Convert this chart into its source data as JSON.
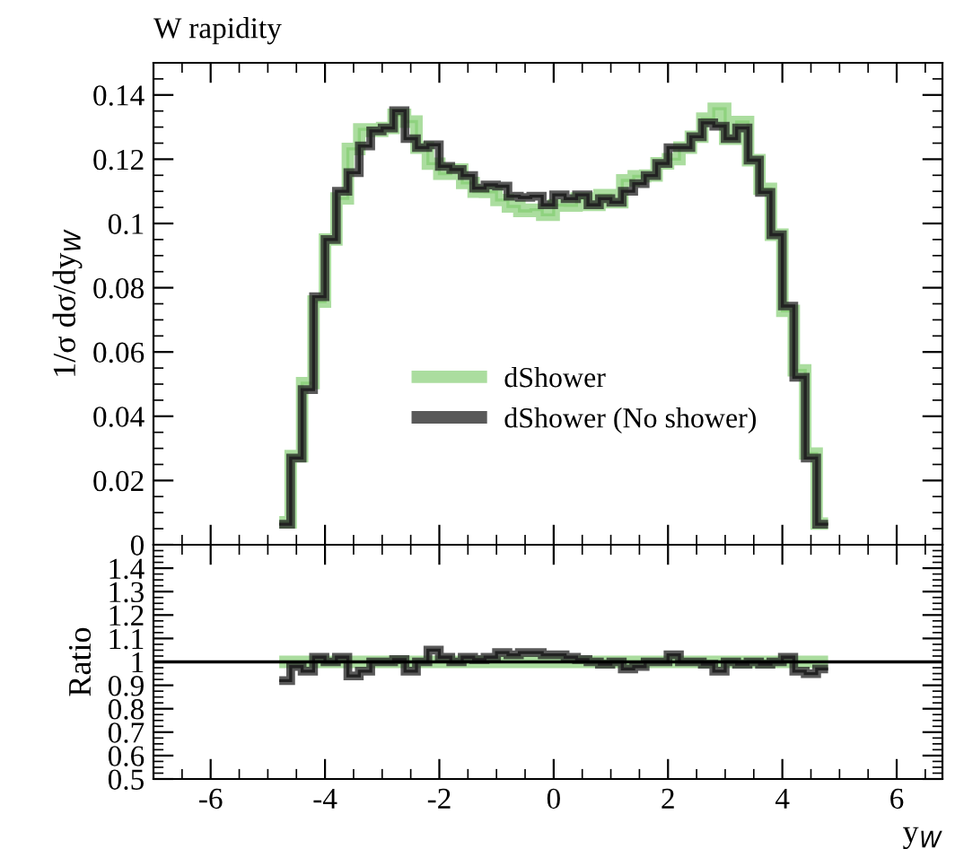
{
  "chart_data": [
    {
      "type": "histogram",
      "title": "W rapidity",
      "ylabel": "1/σ dσ/dy$_{W}$",
      "bins": [
        -4.8,
        -4.6,
        -4.4,
        -4.2,
        -4.0,
        -3.8,
        -3.6,
        -3.4,
        -3.2,
        -3.0,
        -2.8,
        -2.6,
        -2.4,
        -2.2,
        -2.0,
        -1.8,
        -1.6,
        -1.4,
        -1.2,
        -1.0,
        -0.8,
        -0.6,
        -0.4,
        -0.2,
        0.0,
        0.2,
        0.4,
        0.6,
        0.8,
        1.0,
        1.2,
        1.4,
        1.6,
        1.8,
        2.0,
        2.2,
        2.4,
        2.6,
        2.8,
        3.0,
        3.2,
        3.4,
        3.6,
        3.8,
        4.0,
        4.2,
        4.4,
        4.6,
        4.8
      ],
      "series": [
        {
          "name": "dShower",
          "color": "#8fd27f",
          "values": [
            0.007,
            0.0276,
            0.0503,
            0.0757,
            0.095,
            0.1078,
            0.1232,
            0.1293,
            0.1288,
            0.1297,
            0.1338,
            0.1317,
            0.1236,
            0.1186,
            0.1155,
            0.1168,
            0.1126,
            0.1099,
            0.1098,
            0.1073,
            0.1053,
            0.1039,
            0.1043,
            0.1027,
            0.1057,
            0.1056,
            0.1078,
            0.1058,
            0.1088,
            0.1066,
            0.1134,
            0.1147,
            0.1149,
            0.1187,
            0.12,
            0.1236,
            0.127,
            0.1326,
            0.1357,
            0.1264,
            0.1316,
            0.1197,
            0.1108,
            0.0965,
            0.0728,
            0.0543,
            0.0284,
            0.0066
          ]
        },
        {
          "name": "dShower (No shower)",
          "color": "#222222",
          "values": [
            0.0064,
            0.027,
            0.0483,
            0.0772,
            0.095,
            0.11,
            0.1158,
            0.1241,
            0.1288,
            0.1297,
            0.1351,
            0.1264,
            0.1236,
            0.1245,
            0.1178,
            0.1168,
            0.1149,
            0.111,
            0.112,
            0.1116,
            0.1085,
            0.1081,
            0.1085,
            0.1058,
            0.1089,
            0.1077,
            0.1089,
            0.1058,
            0.1077,
            0.1066,
            0.11,
            0.1124,
            0.1149,
            0.1187,
            0.1236,
            0.1236,
            0.127,
            0.1313,
            0.1303,
            0.1264,
            0.1297,
            0.1197,
            0.1097,
            0.0965,
            0.0743,
            0.0521,
            0.027,
            0.0064
          ]
        }
      ],
      "xlim": [
        -7,
        6.8
      ],
      "ylim": [
        0,
        0.15
      ],
      "yticks": [
        0,
        0.02,
        0.04,
        0.06,
        0.08,
        {
          "value": 0.1,
          "label": "0.1"
        },
        0.12,
        0.14
      ],
      "tick_labels": "y",
      "legend": "center",
      "grid": false
    },
    {
      "type": "histogram",
      "xlabel": "y$_{W}$",
      "ylabel": "Ratio",
      "bins": [
        -4.8,
        -4.6,
        -4.4,
        -4.2,
        -4.0,
        -3.8,
        -3.6,
        -3.4,
        -3.2,
        -3.0,
        -2.8,
        -2.6,
        -2.4,
        -2.2,
        -2.0,
        -1.8,
        -1.6,
        -1.4,
        -1.2,
        -1.0,
        -0.8,
        -0.6,
        -0.4,
        -0.2,
        0.0,
        0.2,
        0.4,
        0.6,
        0.8,
        1.0,
        1.2,
        1.4,
        1.6,
        1.8,
        2.0,
        2.2,
        2.4,
        2.6,
        2.8,
        3.0,
        3.2,
        3.4,
        3.6,
        3.8,
        4.0,
        4.2,
        4.4,
        4.6,
        4.8
      ],
      "series": [
        {
          "color": "#8fd27f",
          "values": [
            1,
            1,
            1,
            1,
            1,
            1,
            1,
            1,
            1,
            1,
            1,
            1,
            1,
            1,
            1,
            1,
            1,
            1,
            1,
            1,
            1,
            1,
            1,
            1,
            1,
            1,
            1,
            1,
            1,
            1,
            1,
            1,
            1,
            1,
            1,
            1,
            1,
            1,
            1,
            1,
            1,
            1,
            1,
            1,
            1,
            1,
            1,
            1
          ]
        },
        {
          "color": "#222222",
          "values": [
            0.92,
            0.98,
            0.96,
            1.02,
            1.0,
            1.02,
            0.94,
            0.96,
            1.0,
            1.0,
            1.01,
            0.96,
            1.0,
            1.05,
            1.02,
            1.0,
            1.02,
            1.01,
            1.02,
            1.04,
            1.03,
            1.04,
            1.04,
            1.03,
            1.03,
            1.02,
            1.01,
            1.0,
            0.99,
            1.0,
            0.97,
            0.98,
            1.0,
            1.0,
            1.03,
            1.0,
            1.0,
            0.99,
            0.96,
            1.0,
            0.99,
            1.0,
            0.99,
            1.0,
            1.02,
            0.96,
            0.95,
            0.97
          ]
        }
      ],
      "ref_lines": [
        {
          "axis": "y",
          "value": 1,
          "color": "#000000"
        }
      ],
      "xlim": [
        -7,
        6.8
      ],
      "ylim": [
        0.5,
        1.5
      ],
      "xticks": [
        -6,
        -4,
        -2,
        0,
        2,
        4,
        6
      ],
      "yticks": [
        0.5,
        0.6,
        0.7,
        0.8,
        0.9,
        {
          "value": 1.0,
          "label": "1"
        },
        1.1,
        1.2,
        1.3,
        1.4
      ],
      "grid": false
    }
  ]
}
